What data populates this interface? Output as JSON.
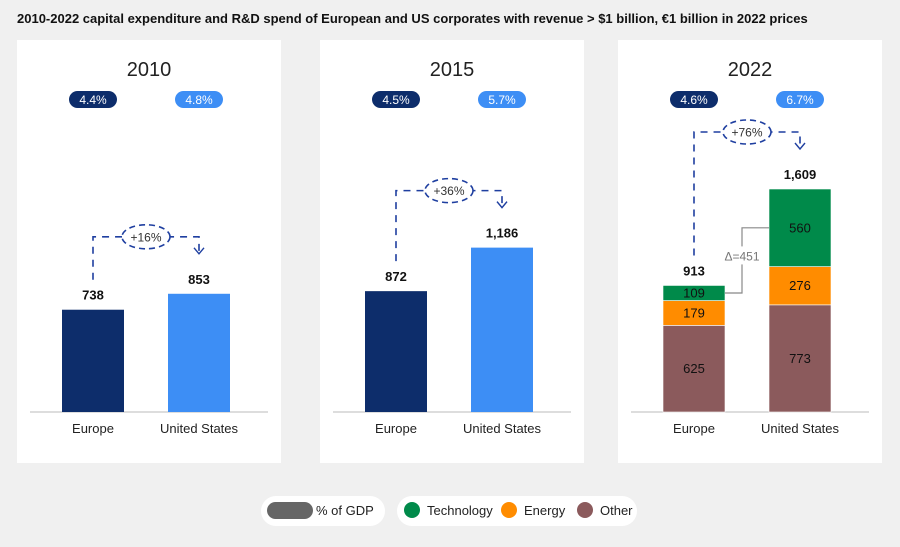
{
  "title": "2010-2022 capital expenditure and R&D spend of European  and US corporates with revenue > $1 billion, €1 billion in 2022 prices",
  "colors": {
    "europe": "#0d2d6b",
    "us": "#3d8ef5",
    "technology": "#008a4a",
    "energy": "#ff8c00",
    "other": "#8b5a5c",
    "gdp_legend": "#666666",
    "connector": "#1f3fa0"
  },
  "chart_data": [
    {
      "type": "bar",
      "title": "2010",
      "categories": [
        "Europe",
        "United States"
      ],
      "values": [
        738,
        853
      ],
      "value_labels": [
        "738",
        "853"
      ],
      "gdp_share": [
        "4.4%",
        "4.8%"
      ],
      "growth": "+16%"
    },
    {
      "type": "bar",
      "title": "2015",
      "categories": [
        "Europe",
        "United States"
      ],
      "values": [
        872,
        1186
      ],
      "value_labels": [
        "872",
        "1,186"
      ],
      "gdp_share": [
        "4.5%",
        "5.7%"
      ],
      "growth": "+36%"
    },
    {
      "type": "bar",
      "stacked": true,
      "title": "2022",
      "categories": [
        "Europe",
        "United States"
      ],
      "series": [
        {
          "name": "Other",
          "values": [
            625,
            773
          ]
        },
        {
          "name": "Energy",
          "values": [
            179,
            276
          ]
        },
        {
          "name": "Technology",
          "values": [
            109,
            560
          ]
        }
      ],
      "value_labels": [
        "913",
        "1,609"
      ],
      "gdp_share": [
        "4.6%",
        "6.7%"
      ],
      "growth": "+76%",
      "delta_label": "Δ=451"
    }
  ],
  "legend": {
    "gdp": "% of GDP",
    "items": [
      "Technology",
      "Energy",
      "Other"
    ]
  }
}
